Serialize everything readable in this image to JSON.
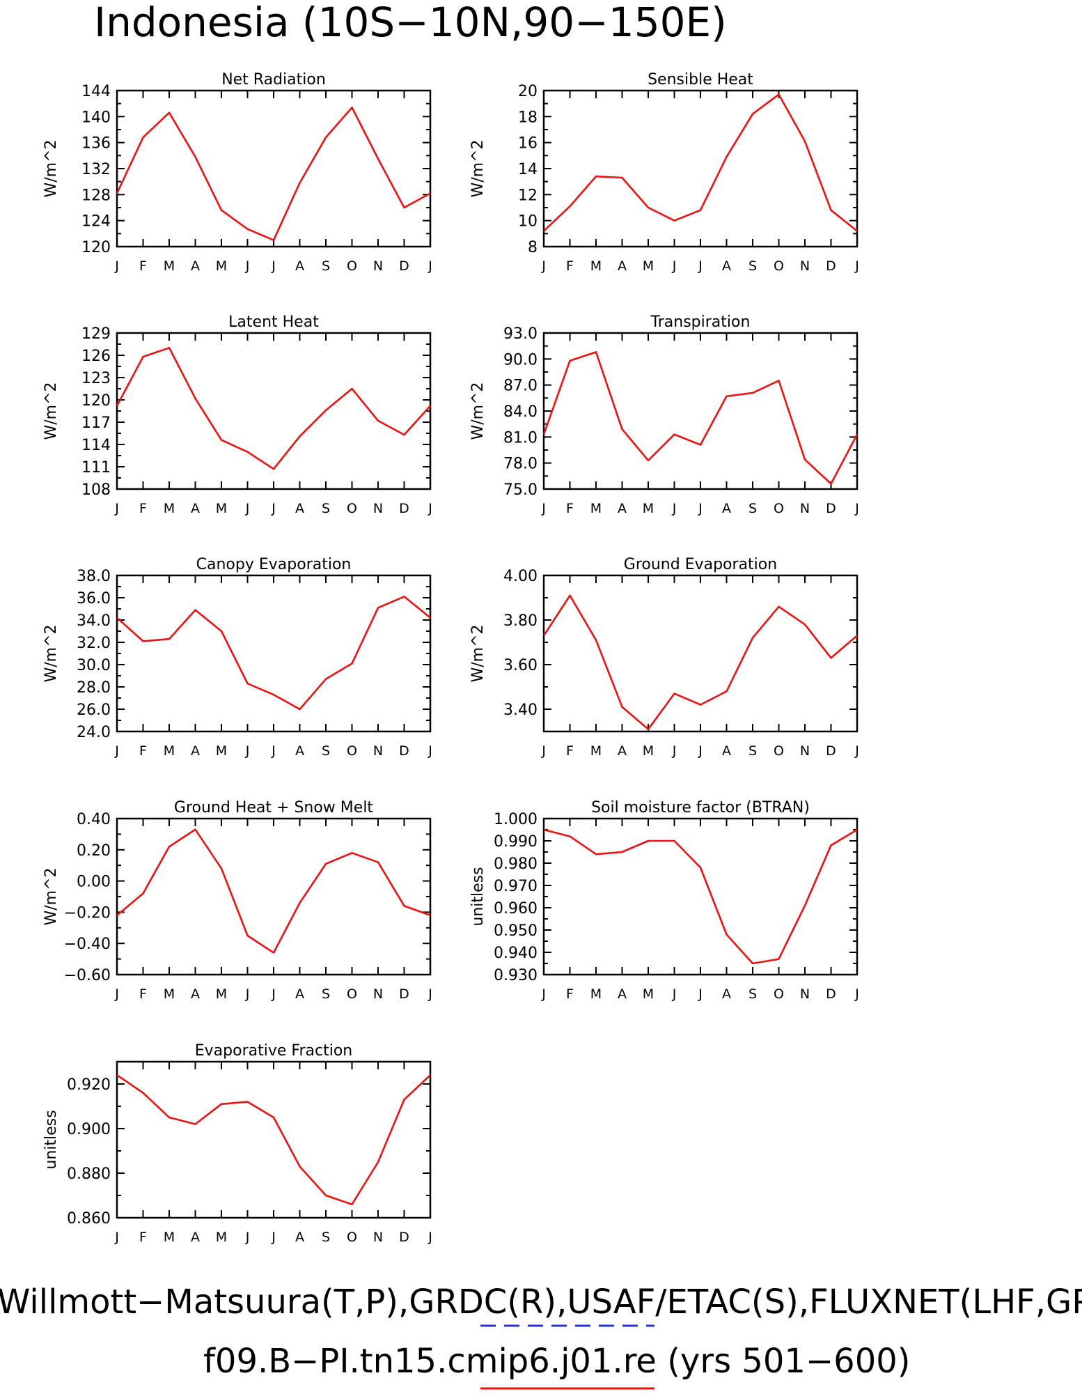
{
  "figure": {
    "title": "Indonesia (10S−10N,90−150E)",
    "footer_line1": "Willmott−Matsuura(T,P),GRDC(R),USAF/ETAC(S),FLUXNET(LHF,GPP,NEE),CERES(SW,LW),MODIS(LAI),GLEAM(TRN)",
    "footer_line2": "f09.B−PI.tn15.cmip6.j01.re (yrs 501−600)",
    "obs_line_color": "#2233dd",
    "model_line_color": "#ee1111"
  },
  "chart_data": [
    {
      "type": "line",
      "title": "Net Radiation",
      "ylabel": "W/m^2",
      "x": [
        "J",
        "F",
        "M",
        "A",
        "M",
        "J",
        "J",
        "A",
        "S",
        "O",
        "N",
        "D",
        "J"
      ],
      "ylim": [
        120,
        144
      ],
      "yticks": [
        "120",
        "124",
        "128",
        "132",
        "136",
        "140",
        "144"
      ],
      "series": [
        {
          "color": "#ee1111",
          "values": [
            128.2,
            136.8,
            140.6,
            133.8,
            125.6,
            122.7,
            121.0,
            129.8,
            136.8,
            141.4,
            133.5,
            126.0,
            128.2
          ]
        }
      ]
    },
    {
      "type": "line",
      "title": "Sensible Heat",
      "ylabel": "W/m^2",
      "x": [
        "J",
        "F",
        "M",
        "A",
        "M",
        "J",
        "J",
        "A",
        "S",
        "O",
        "N",
        "D",
        "J"
      ],
      "ylim": [
        8,
        20
      ],
      "yticks": [
        "8",
        "10",
        "12",
        "14",
        "16",
        "18",
        "20"
      ],
      "series": [
        {
          "color": "#ee1111",
          "values": [
            9.2,
            11.1,
            13.4,
            13.3,
            11.0,
            10.0,
            10.8,
            14.9,
            18.2,
            19.7,
            16.1,
            10.8,
            9.2
          ]
        }
      ]
    },
    {
      "type": "line",
      "title": "Latent Heat",
      "ylabel": "W/m^2",
      "x": [
        "J",
        "F",
        "M",
        "A",
        "M",
        "J",
        "J",
        "A",
        "S",
        "O",
        "N",
        "D",
        "J"
      ],
      "ylim": [
        108,
        129
      ],
      "yticks": [
        "108",
        "111",
        "114",
        "117",
        "120",
        "123",
        "126",
        "129"
      ],
      "series": [
        {
          "color": "#ee1111",
          "values": [
            119.2,
            125.8,
            127.0,
            120.2,
            114.6,
            113.0,
            110.7,
            115.1,
            118.6,
            121.5,
            117.2,
            115.3,
            119.2
          ]
        }
      ]
    },
    {
      "type": "line",
      "title": "Transpiration",
      "ylabel": "W/m^2",
      "x": [
        "J",
        "F",
        "M",
        "A",
        "M",
        "J",
        "J",
        "A",
        "S",
        "O",
        "N",
        "D",
        "J"
      ],
      "ylim": [
        75,
        93
      ],
      "yticks": [
        "75.0",
        "78.0",
        "81.0",
        "84.0",
        "87.0",
        "90.0",
        "93.0"
      ],
      "series": [
        {
          "color": "#ee1111",
          "values": [
            81.3,
            89.8,
            90.8,
            81.9,
            78.3,
            81.3,
            80.1,
            85.7,
            86.1,
            87.5,
            78.4,
            75.6,
            81.3
          ]
        }
      ]
    },
    {
      "type": "line",
      "title": "Canopy Evaporation",
      "ylabel": "W/m^2",
      "x": [
        "J",
        "F",
        "M",
        "A",
        "M",
        "J",
        "J",
        "A",
        "S",
        "O",
        "N",
        "D",
        "J"
      ],
      "ylim": [
        24,
        38
      ],
      "yticks": [
        "24.0",
        "26.0",
        "28.0",
        "30.0",
        "32.0",
        "34.0",
        "36.0",
        "38.0"
      ],
      "series": [
        {
          "color": "#ee1111",
          "values": [
            34.2,
            32.1,
            32.3,
            34.9,
            33.0,
            28.3,
            27.3,
            26.0,
            28.7,
            30.1,
            35.1,
            36.1,
            34.2
          ]
        }
      ]
    },
    {
      "type": "line",
      "title": "Ground Evaporation",
      "ylabel": "W/m^2",
      "x": [
        "J",
        "F",
        "M",
        "A",
        "M",
        "J",
        "J",
        "A",
        "S",
        "O",
        "N",
        "D",
        "J"
      ],
      "ylim": [
        3.3,
        4.0
      ],
      "yticks": [
        "3.40",
        "3.60",
        "3.80",
        "4.00"
      ],
      "series": [
        {
          "color": "#ee1111",
          "values": [
            3.73,
            3.91,
            3.71,
            3.41,
            3.31,
            3.47,
            3.42,
            3.48,
            3.72,
            3.86,
            3.78,
            3.63,
            3.73
          ]
        }
      ]
    },
    {
      "type": "line",
      "title": "Ground Heat + Snow Melt",
      "ylabel": "W/m^2",
      "x": [
        "J",
        "F",
        "M",
        "A",
        "M",
        "J",
        "J",
        "A",
        "S",
        "O",
        "N",
        "D",
        "J"
      ],
      "ylim": [
        -0.6,
        0.4
      ],
      "yticks": [
        "−0.60",
        "−0.40",
        "−0.20",
        "0.00",
        "0.20",
        "0.40"
      ],
      "series": [
        {
          "color": "#ee1111",
          "values": [
            -0.22,
            -0.08,
            0.22,
            0.33,
            0.08,
            -0.35,
            -0.46,
            -0.14,
            0.11,
            0.18,
            0.12,
            -0.16,
            -0.22
          ]
        }
      ]
    },
    {
      "type": "line",
      "title": "Soil moisture factor (BTRAN)",
      "ylabel": "unitless",
      "x": [
        "J",
        "F",
        "M",
        "A",
        "M",
        "J",
        "J",
        "A",
        "S",
        "O",
        "N",
        "D",
        "J"
      ],
      "ylim": [
        0.93,
        1.0
      ],
      "yticks": [
        "0.930",
        "0.940",
        "0.950",
        "0.960",
        "0.970",
        "0.980",
        "0.990",
        "1.000"
      ],
      "series": [
        {
          "color": "#ee1111",
          "values": [
            0.995,
            0.992,
            0.984,
            0.985,
            0.99,
            0.99,
            0.978,
            0.948,
            0.935,
            0.937,
            0.961,
            0.988,
            0.995
          ]
        }
      ]
    },
    {
      "type": "line",
      "title": "Evaporative Fraction",
      "ylabel": "unitless",
      "x": [
        "J",
        "F",
        "M",
        "A",
        "M",
        "J",
        "J",
        "A",
        "S",
        "O",
        "N",
        "D",
        "J"
      ],
      "ylim": [
        0.86,
        0.93
      ],
      "yticks": [
        "0.860",
        "0.880",
        "0.900",
        "0.920"
      ],
      "series": [
        {
          "color": "#ee1111",
          "values": [
            0.924,
            0.916,
            0.905,
            0.902,
            0.911,
            0.912,
            0.905,
            0.883,
            0.87,
            0.866,
            0.885,
            0.913,
            0.924
          ]
        }
      ]
    }
  ]
}
